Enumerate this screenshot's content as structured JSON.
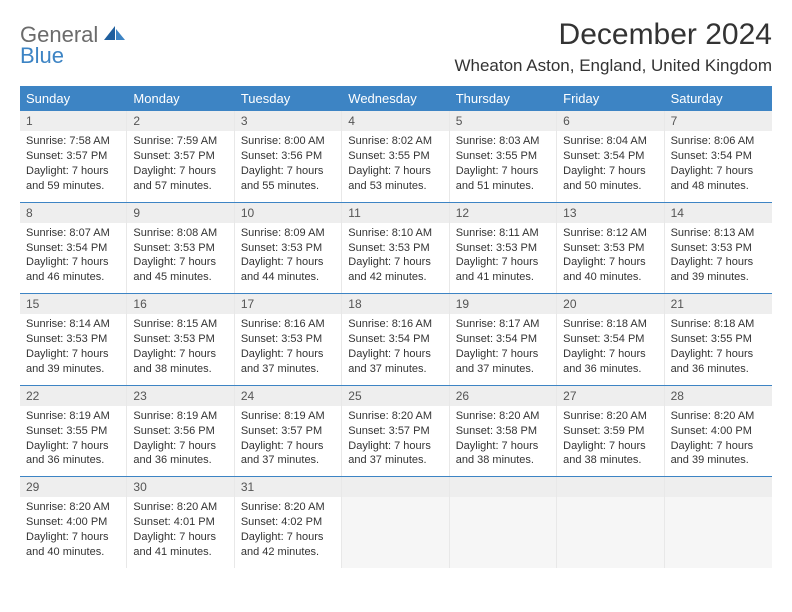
{
  "logo": {
    "general": "General",
    "blue": "Blue"
  },
  "title": "December 2024",
  "location": "Wheaton Aston, England, United Kingdom",
  "header_bg": "#3d84c4",
  "day_names": [
    "Sunday",
    "Monday",
    "Tuesday",
    "Wednesday",
    "Thursday",
    "Friday",
    "Saturday"
  ],
  "weeks": [
    [
      {
        "n": "1",
        "sr": "Sunrise: 7:58 AM",
        "ss": "Sunset: 3:57 PM",
        "d1": "Daylight: 7 hours",
        "d2": "and 59 minutes."
      },
      {
        "n": "2",
        "sr": "Sunrise: 7:59 AM",
        "ss": "Sunset: 3:57 PM",
        "d1": "Daylight: 7 hours",
        "d2": "and 57 minutes."
      },
      {
        "n": "3",
        "sr": "Sunrise: 8:00 AM",
        "ss": "Sunset: 3:56 PM",
        "d1": "Daylight: 7 hours",
        "d2": "and 55 minutes."
      },
      {
        "n": "4",
        "sr": "Sunrise: 8:02 AM",
        "ss": "Sunset: 3:55 PM",
        "d1": "Daylight: 7 hours",
        "d2": "and 53 minutes."
      },
      {
        "n": "5",
        "sr": "Sunrise: 8:03 AM",
        "ss": "Sunset: 3:55 PM",
        "d1": "Daylight: 7 hours",
        "d2": "and 51 minutes."
      },
      {
        "n": "6",
        "sr": "Sunrise: 8:04 AM",
        "ss": "Sunset: 3:54 PM",
        "d1": "Daylight: 7 hours",
        "d2": "and 50 minutes."
      },
      {
        "n": "7",
        "sr": "Sunrise: 8:06 AM",
        "ss": "Sunset: 3:54 PM",
        "d1": "Daylight: 7 hours",
        "d2": "and 48 minutes."
      }
    ],
    [
      {
        "n": "8",
        "sr": "Sunrise: 8:07 AM",
        "ss": "Sunset: 3:54 PM",
        "d1": "Daylight: 7 hours",
        "d2": "and 46 minutes."
      },
      {
        "n": "9",
        "sr": "Sunrise: 8:08 AM",
        "ss": "Sunset: 3:53 PM",
        "d1": "Daylight: 7 hours",
        "d2": "and 45 minutes."
      },
      {
        "n": "10",
        "sr": "Sunrise: 8:09 AM",
        "ss": "Sunset: 3:53 PM",
        "d1": "Daylight: 7 hours",
        "d2": "and 44 minutes."
      },
      {
        "n": "11",
        "sr": "Sunrise: 8:10 AM",
        "ss": "Sunset: 3:53 PM",
        "d1": "Daylight: 7 hours",
        "d2": "and 42 minutes."
      },
      {
        "n": "12",
        "sr": "Sunrise: 8:11 AM",
        "ss": "Sunset: 3:53 PM",
        "d1": "Daylight: 7 hours",
        "d2": "and 41 minutes."
      },
      {
        "n": "13",
        "sr": "Sunrise: 8:12 AM",
        "ss": "Sunset: 3:53 PM",
        "d1": "Daylight: 7 hours",
        "d2": "and 40 minutes."
      },
      {
        "n": "14",
        "sr": "Sunrise: 8:13 AM",
        "ss": "Sunset: 3:53 PM",
        "d1": "Daylight: 7 hours",
        "d2": "and 39 minutes."
      }
    ],
    [
      {
        "n": "15",
        "sr": "Sunrise: 8:14 AM",
        "ss": "Sunset: 3:53 PM",
        "d1": "Daylight: 7 hours",
        "d2": "and 39 minutes."
      },
      {
        "n": "16",
        "sr": "Sunrise: 8:15 AM",
        "ss": "Sunset: 3:53 PM",
        "d1": "Daylight: 7 hours",
        "d2": "and 38 minutes."
      },
      {
        "n": "17",
        "sr": "Sunrise: 8:16 AM",
        "ss": "Sunset: 3:53 PM",
        "d1": "Daylight: 7 hours",
        "d2": "and 37 minutes."
      },
      {
        "n": "18",
        "sr": "Sunrise: 8:16 AM",
        "ss": "Sunset: 3:54 PM",
        "d1": "Daylight: 7 hours",
        "d2": "and 37 minutes."
      },
      {
        "n": "19",
        "sr": "Sunrise: 8:17 AM",
        "ss": "Sunset: 3:54 PM",
        "d1": "Daylight: 7 hours",
        "d2": "and 37 minutes."
      },
      {
        "n": "20",
        "sr": "Sunrise: 8:18 AM",
        "ss": "Sunset: 3:54 PM",
        "d1": "Daylight: 7 hours",
        "d2": "and 36 minutes."
      },
      {
        "n": "21",
        "sr": "Sunrise: 8:18 AM",
        "ss": "Sunset: 3:55 PM",
        "d1": "Daylight: 7 hours",
        "d2": "and 36 minutes."
      }
    ],
    [
      {
        "n": "22",
        "sr": "Sunrise: 8:19 AM",
        "ss": "Sunset: 3:55 PM",
        "d1": "Daylight: 7 hours",
        "d2": "and 36 minutes."
      },
      {
        "n": "23",
        "sr": "Sunrise: 8:19 AM",
        "ss": "Sunset: 3:56 PM",
        "d1": "Daylight: 7 hours",
        "d2": "and 36 minutes."
      },
      {
        "n": "24",
        "sr": "Sunrise: 8:19 AM",
        "ss": "Sunset: 3:57 PM",
        "d1": "Daylight: 7 hours",
        "d2": "and 37 minutes."
      },
      {
        "n": "25",
        "sr": "Sunrise: 8:20 AM",
        "ss": "Sunset: 3:57 PM",
        "d1": "Daylight: 7 hours",
        "d2": "and 37 minutes."
      },
      {
        "n": "26",
        "sr": "Sunrise: 8:20 AM",
        "ss": "Sunset: 3:58 PM",
        "d1": "Daylight: 7 hours",
        "d2": "and 38 minutes."
      },
      {
        "n": "27",
        "sr": "Sunrise: 8:20 AM",
        "ss": "Sunset: 3:59 PM",
        "d1": "Daylight: 7 hours",
        "d2": "and 38 minutes."
      },
      {
        "n": "28",
        "sr": "Sunrise: 8:20 AM",
        "ss": "Sunset: 4:00 PM",
        "d1": "Daylight: 7 hours",
        "d2": "and 39 minutes."
      }
    ],
    [
      {
        "n": "29",
        "sr": "Sunrise: 8:20 AM",
        "ss": "Sunset: 4:00 PM",
        "d1": "Daylight: 7 hours",
        "d2": "and 40 minutes."
      },
      {
        "n": "30",
        "sr": "Sunrise: 8:20 AM",
        "ss": "Sunset: 4:01 PM",
        "d1": "Daylight: 7 hours",
        "d2": "and 41 minutes."
      },
      {
        "n": "31",
        "sr": "Sunrise: 8:20 AM",
        "ss": "Sunset: 4:02 PM",
        "d1": "Daylight: 7 hours",
        "d2": "and 42 minutes."
      },
      {
        "empty": true
      },
      {
        "empty": true
      },
      {
        "empty": true
      },
      {
        "empty": true
      }
    ]
  ]
}
